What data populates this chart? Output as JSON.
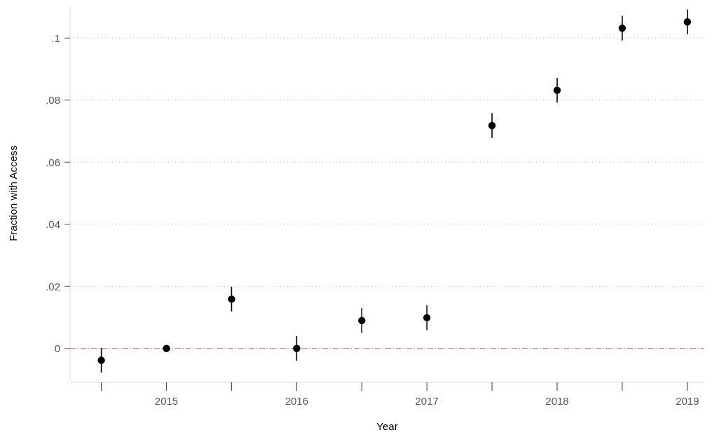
{
  "chart_data": {
    "type": "scatter",
    "xlabel": "Year",
    "ylabel": "Fraction with Access",
    "x": [
      2014.5,
      2015,
      2015.5,
      2016,
      2016.5,
      2017,
      2017.5,
      2018,
      2018.5,
      2019
    ],
    "values": [
      -0.0038,
      0,
      0.0159,
      0,
      0.009,
      0.0099,
      0.0718,
      0.0832,
      0.1032,
      0.1052
    ],
    "errors": [
      0.004,
      null,
      0.004,
      0.004,
      0.004,
      0.004,
      0.004,
      0.004,
      0.004,
      0.004
    ],
    "color": "#000000",
    "marker": "circle",
    "xlim": [
      2014.26,
      2019.13
    ],
    "xticks": [
      {
        "value": 2014.5,
        "label": null
      },
      2015,
      {
        "value": 2015.5,
        "label": null
      },
      2016,
      {
        "value": 2016.5,
        "label": null
      },
      2017,
      {
        "value": 2017.5,
        "label": null
      },
      2018,
      {
        "value": 2018.5,
        "label": null
      },
      2019
    ],
    "ylim": [
      -0.01,
      0.11
    ],
    "yticks": [
      {
        "value": 0,
        "label": "0"
      },
      {
        "value": 0.02,
        "label": ".02"
      },
      {
        "value": 0.04,
        "label": ".04"
      },
      {
        "value": 0.06,
        "label": ".06"
      },
      {
        "value": 0.08,
        "label": ".08"
      },
      {
        "value": 0.1,
        "label": ".1"
      }
    ],
    "grid": "y",
    "ref_lines": [
      {
        "axis": "y",
        "value": 0,
        "color": "#c0648c",
        "line_style": "dashdot"
      }
    ]
  }
}
